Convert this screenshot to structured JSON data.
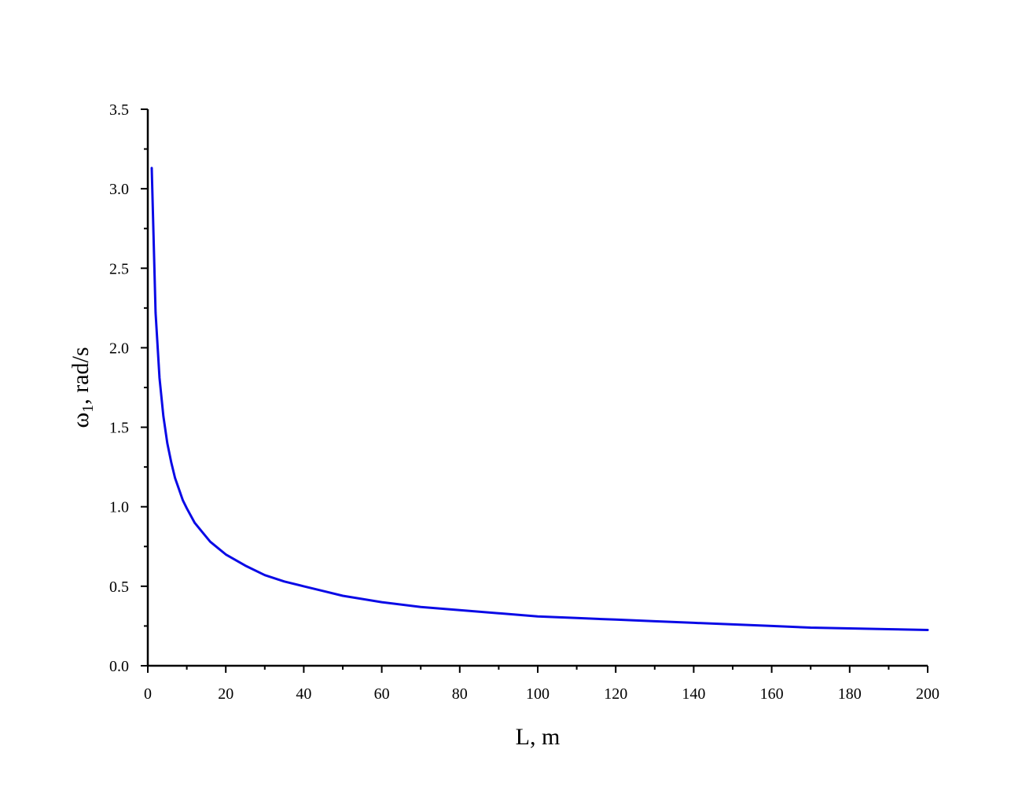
{
  "chart_data": {
    "type": "line",
    "title": "",
    "xlabel": "L, m",
    "ylabel": {
      "symbol": "ω",
      "subscript": "1",
      "rest": ", rad/s"
    },
    "xlim": [
      0,
      200
    ],
    "ylim": [
      0,
      3.5
    ],
    "x_ticks": [
      0,
      20,
      40,
      60,
      80,
      100,
      120,
      140,
      160,
      180,
      200
    ],
    "y_ticks": [
      "0.0",
      "0.5",
      "1.0",
      "1.5",
      "2.0",
      "2.5",
      "3.0",
      "3.5"
    ],
    "grid": false,
    "legend": "none",
    "series": [
      {
        "color": "#0a0ae6",
        "x": [
          1,
          2,
          3,
          4,
          5,
          6,
          7,
          8,
          9,
          10,
          12,
          14,
          16,
          18,
          20,
          25,
          30,
          35,
          40,
          45,
          50,
          60,
          70,
          80,
          90,
          100,
          110,
          120,
          130,
          140,
          150,
          160,
          170,
          180,
          190,
          200
        ],
        "y": [
          3.13,
          2.22,
          1.81,
          1.57,
          1.4,
          1.28,
          1.18,
          1.11,
          1.04,
          0.99,
          0.9,
          0.84,
          0.78,
          0.74,
          0.7,
          0.63,
          0.57,
          0.53,
          0.5,
          0.47,
          0.44,
          0.4,
          0.37,
          0.35,
          0.33,
          0.31,
          0.3,
          0.29,
          0.28,
          0.27,
          0.26,
          0.25,
          0.24,
          0.235,
          0.23,
          0.225
        ]
      }
    ]
  }
}
